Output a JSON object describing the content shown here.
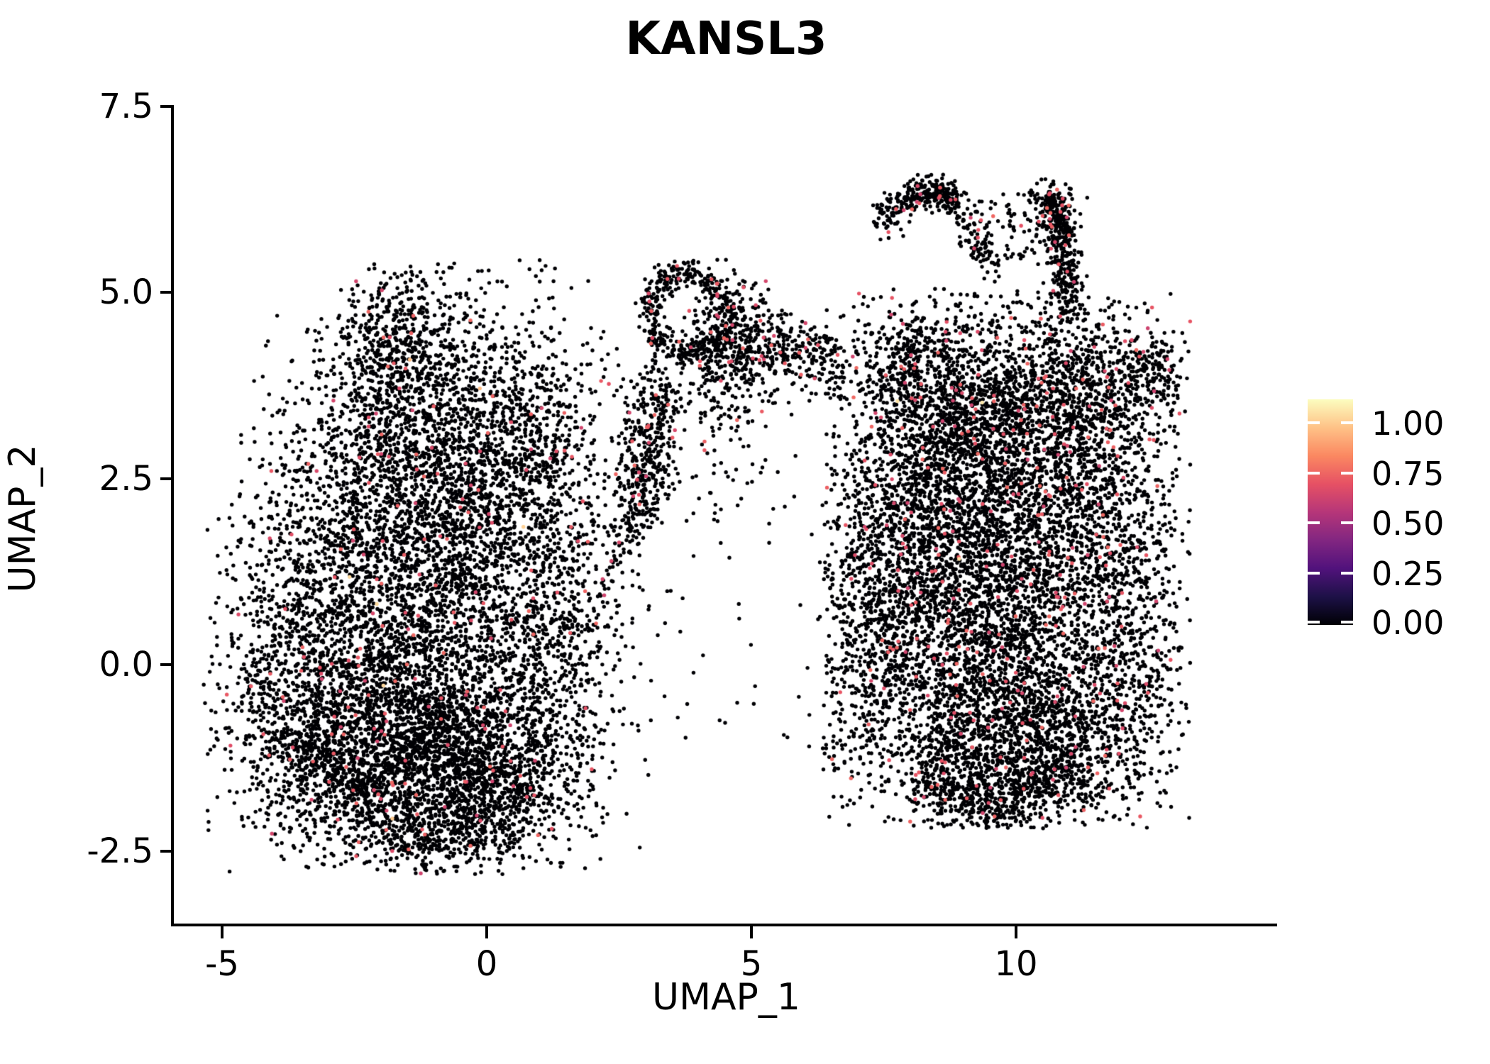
{
  "title": "KANSL3",
  "axes": {
    "x": {
      "label": "UMAP_1",
      "ticks": [
        -5,
        0,
        5,
        10
      ],
      "tick_labels": [
        "-5",
        "0",
        "5",
        "10"
      ]
    },
    "y": {
      "label": "UMAP_2",
      "ticks": [
        7.5,
        5.0,
        2.5,
        0.0,
        -2.5
      ],
      "tick_labels": [
        "7.5",
        "5.0",
        "2.5",
        "0.0",
        "-2.5"
      ]
    }
  },
  "colorbar": {
    "tick_labels": [
      "1.00",
      "0.75",
      "0.50",
      "0.25",
      "0.00"
    ],
    "gradient_stops": [
      "#000004",
      "#1D1147",
      "#51127C",
      "#822681",
      "#B63679",
      "#E65164",
      "#FB8861",
      "#FEC287",
      "#FCFDBF"
    ]
  },
  "chart_data": {
    "type": "scatter",
    "title": "KANSL3",
    "xlabel": "UMAP_1",
    "ylabel": "UMAP_2",
    "xlim": [
      -6.6,
      14.9
    ],
    "ylim": [
      -3.5,
      7.6
    ],
    "x_ticks": [
      -5,
      0,
      5,
      10
    ],
    "y_ticks": [
      7.5,
      5.0,
      2.5,
      0.0,
      -2.5
    ],
    "legend_position": "right",
    "grid": false,
    "background_color": "#FFFFFF",
    "point_radius_px": 2.7,
    "zero_expression_color": "#000004",
    "low_expression_color": "#E65164",
    "colorbar_range": [
      0.0,
      1.0
    ],
    "expression_note": "vast majority of cells have value 0 (black); sparse cells ~0.5-0.7 (pink); very rare cells ~0.9 (pale yellow)",
    "value_model": {
      "high_rate": 0.0008,
      "high_value_range": [
        0.86,
        0.97
      ],
      "low_value_range": [
        0.56,
        0.68
      ]
    },
    "clusters": [
      {
        "kind": "gauss",
        "cx": -1.5,
        "cy": 4.35,
        "sx": 0.75,
        "sy": 0.55,
        "n": 600,
        "pink": 0.02,
        "clip": [
          -5.35,
          -2.82,
          3.25,
          5.4
        ]
      },
      {
        "kind": "gauss",
        "cx": -1.2,
        "cy": 3.0,
        "sx": 1.25,
        "sy": 0.75,
        "n": 1000,
        "pink": 0.02,
        "clip": [
          -5.35,
          -2.82,
          3.25,
          5.4
        ]
      },
      {
        "kind": "gauss",
        "cx": -2.3,
        "cy": 1.3,
        "sx": 1.2,
        "sy": 1.2,
        "n": 1500,
        "pink": 0.02,
        "clip": [
          -5.35,
          -2.82,
          3.25,
          5.4
        ]
      },
      {
        "kind": "gauss",
        "cx": -0.5,
        "cy": 1.4,
        "sx": 1.1,
        "sy": 1.1,
        "n": 1300,
        "pink": 0.02,
        "clip": [
          -5.35,
          -2.82,
          3.25,
          5.4
        ]
      },
      {
        "kind": "gauss",
        "cx": -2.1,
        "cy": -0.9,
        "sx": 1.25,
        "sy": 0.85,
        "n": 2200,
        "pink": 0.018,
        "clip": [
          -5.35,
          -2.82,
          3.25,
          5.4
        ]
      },
      {
        "kind": "gauss",
        "cx": -0.3,
        "cy": -1.4,
        "sx": 1.0,
        "sy": 0.65,
        "n": 1500,
        "pink": 0.018,
        "clip": [
          -5.35,
          -2.82,
          3.25,
          5.4
        ]
      },
      {
        "kind": "gauss",
        "cx": 1.2,
        "cy": 0.5,
        "sx": 0.7,
        "sy": 1.2,
        "n": 800,
        "pink": 0.02,
        "clip": [
          -5.35,
          -2.82,
          3.25,
          5.4
        ]
      },
      {
        "kind": "gauss",
        "cx": 0.8,
        "cy": 3.2,
        "sx": 0.8,
        "sy": 0.75,
        "n": 500,
        "pink": 0.025,
        "clip": [
          -5.35,
          -2.82,
          3.25,
          5.4
        ]
      },
      {
        "kind": "gauss",
        "cx": -3.9,
        "cy": -0.2,
        "sx": 0.6,
        "sy": 1.0,
        "n": 350,
        "pink": 0.02,
        "clip": [
          -5.35,
          -2.82,
          3.25,
          5.4
        ]
      },
      {
        "kind": "line",
        "x1": 2.55,
        "y1": 1.5,
        "x2": 3.05,
        "y2": 3.85,
        "sd": 0.2,
        "n": 200,
        "pink": 0.03,
        "clip": [
          -5.35,
          -2.82,
          3.45,
          5.4
        ]
      },
      {
        "kind": "line",
        "x1": -3.4,
        "y1": -1.0,
        "x2": -1.6,
        "y2": -2.35,
        "sd": 0.22,
        "n": 260,
        "pink": 0.018,
        "clip": [
          -5.35,
          -2.82,
          3.25,
          5.4
        ]
      },
      {
        "kind": "line",
        "x1": -1.6,
        "y1": -2.45,
        "x2": 0.7,
        "y2": -2.0,
        "sd": 0.22,
        "n": 260,
        "pink": 0.018,
        "clip": [
          -5.35,
          -2.82,
          3.25,
          5.4
        ]
      },
      {
        "kind": "ring",
        "cx": 3.82,
        "cy": 4.72,
        "rx": 0.72,
        "ry": 0.55,
        "sd": 0.17,
        "n": 420,
        "pink": 0.05,
        "clip": [
          2.5,
          1.5,
          6.95,
          5.5
        ]
      },
      {
        "kind": "gauss",
        "cx": 4.6,
        "cy": 4.25,
        "sx": 0.45,
        "sy": 0.5,
        "n": 420,
        "pink": 0.05,
        "clip": [
          2.5,
          1.5,
          6.95,
          5.5
        ]
      },
      {
        "kind": "line",
        "x1": 5.05,
        "y1": 4.4,
        "x2": 6.6,
        "y2": 4.05,
        "sd": 0.22,
        "n": 200,
        "pink": 0.05,
        "clip": [
          2.5,
          1.5,
          6.95,
          5.5
        ]
      },
      {
        "kind": "line",
        "x1": 3.35,
        "y1": 3.75,
        "x2": 2.95,
        "y2": 1.85,
        "sd": 0.18,
        "n": 240,
        "pink": 0.04,
        "clip": [
          2.5,
          1.5,
          6.95,
          5.5
        ]
      },
      {
        "kind": "gauss",
        "cx": 4.3,
        "cy": 3.1,
        "sx": 0.6,
        "sy": 0.7,
        "n": 80,
        "pink": 0.04,
        "clip": [
          2.5,
          1.5,
          6.95,
          5.5
        ]
      },
      {
        "kind": "line",
        "x1": 7.45,
        "y1": 5.95,
        "x2": 8.1,
        "y2": 6.3,
        "sd": 0.12,
        "n": 110,
        "pink": 0.06,
        "clip": [
          7.2,
          4.55,
          11.45,
          6.6
        ]
      },
      {
        "kind": "line",
        "x1": 8.1,
        "y1": 6.33,
        "x2": 8.9,
        "y2": 6.28,
        "sd": 0.11,
        "n": 190,
        "pink": 0.06,
        "clip": [
          7.2,
          4.55,
          11.45,
          6.6
        ]
      },
      {
        "kind": "line",
        "x1": 8.85,
        "y1": 6.15,
        "x2": 9.55,
        "y2": 5.35,
        "sd": 0.13,
        "n": 100,
        "pink": 0.05,
        "clip": [
          7.2,
          4.55,
          11.45,
          6.6
        ]
      },
      {
        "kind": "box",
        "x1": 9.2,
        "y1": 5.45,
        "x2": 10.55,
        "y2": 6.35,
        "n": 70,
        "pink": 0.04
      },
      {
        "kind": "line",
        "x1": 10.75,
        "y1": 6.3,
        "x2": 11.05,
        "y2": 4.75,
        "sd": 0.16,
        "n": 360,
        "pink": 0.06,
        "clip": [
          7.2,
          4.55,
          11.45,
          6.6
        ]
      },
      {
        "kind": "gauss",
        "cx": 10.7,
        "cy": 6.2,
        "sx": 0.22,
        "sy": 0.15,
        "n": 90,
        "pink": 0.06,
        "clip": [
          7.2,
          4.55,
          11.45,
          6.6
        ]
      },
      {
        "kind": "gauss",
        "cx": 9.4,
        "cy": 3.5,
        "sx": 1.15,
        "sy": 0.7,
        "n": 1500,
        "pink": 0.04,
        "clip": [
          6.35,
          -2.2,
          13.3,
          5.05
        ]
      },
      {
        "kind": "gauss",
        "cx": 8.6,
        "cy": 1.8,
        "sx": 1.0,
        "sy": 1.1,
        "n": 1500,
        "pink": 0.035,
        "clip": [
          6.35,
          -2.2,
          13.3,
          5.05
        ]
      },
      {
        "kind": "gauss",
        "cx": 10.6,
        "cy": 2.0,
        "sx": 1.1,
        "sy": 1.0,
        "n": 1500,
        "pink": 0.035,
        "clip": [
          6.35,
          -2.2,
          13.3,
          5.05
        ]
      },
      {
        "kind": "gauss",
        "cx": 9.3,
        "cy": 0.1,
        "sx": 1.2,
        "sy": 1.0,
        "n": 1800,
        "pink": 0.03,
        "clip": [
          6.35,
          -2.2,
          13.3,
          5.05
        ]
      },
      {
        "kind": "gauss",
        "cx": 10.2,
        "cy": -1.1,
        "sx": 1.1,
        "sy": 0.55,
        "n": 1100,
        "pink": 0.03,
        "clip": [
          6.35,
          -2.2,
          13.3,
          5.05
        ]
      },
      {
        "kind": "gauss",
        "cx": 7.35,
        "cy": 0.7,
        "sx": 0.5,
        "sy": 1.3,
        "n": 600,
        "pink": 0.03,
        "clip": [
          6.35,
          -2.2,
          13.3,
          5.05
        ]
      },
      {
        "kind": "gauss",
        "cx": 12.0,
        "cy": 0.6,
        "sx": 0.65,
        "sy": 1.3,
        "n": 800,
        "pink": 0.035,
        "clip": [
          6.35,
          -2.2,
          13.3,
          5.05
        ]
      },
      {
        "kind": "gauss",
        "cx": 11.5,
        "cy": 3.7,
        "sx": 0.7,
        "sy": 0.55,
        "n": 500,
        "pink": 0.04,
        "clip": [
          6.35,
          -2.2,
          13.3,
          5.05
        ]
      },
      {
        "kind": "gauss",
        "cx": 12.55,
        "cy": 3.95,
        "sx": 0.3,
        "sy": 0.35,
        "n": 160,
        "pink": 0.04,
        "clip": [
          6.35,
          -2.2,
          13.3,
          5.05
        ]
      },
      {
        "kind": "gauss",
        "cx": 7.85,
        "cy": 4.05,
        "sx": 0.45,
        "sy": 0.4,
        "n": 240,
        "pink": 0.04,
        "clip": [
          6.35,
          -2.2,
          13.3,
          5.05
        ]
      },
      {
        "kind": "line",
        "x1": 8.2,
        "y1": -1.5,
        "x2": 9.6,
        "y2": -1.95,
        "sd": 0.22,
        "n": 240,
        "pink": 0.03,
        "clip": [
          6.35,
          -2.2,
          13.3,
          5.05
        ]
      },
      {
        "kind": "line",
        "x1": 9.6,
        "y1": -1.95,
        "x2": 11.3,
        "y2": -1.35,
        "sd": 0.22,
        "n": 240,
        "pink": 0.03,
        "clip": [
          6.35,
          -2.2,
          13.3,
          5.05
        ]
      },
      {
        "kind": "box",
        "x1": 2.1,
        "y1": -1.2,
        "x2": 7.1,
        "y2": 3.5,
        "n": 80,
        "pink": 0.03
      },
      {
        "kind": "box",
        "x1": 5.3,
        "y1": 3.55,
        "x2": 6.8,
        "y2": 4.5,
        "n": 40,
        "pink": 0.04
      },
      {
        "kind": "box",
        "x1": -2.5,
        "y1": 5.05,
        "x2": 1.3,
        "y2": 5.45,
        "n": 14,
        "pink": 0.0
      },
      {
        "kind": "box",
        "x1": 6.3,
        "y1": -1.6,
        "x2": 7.4,
        "y2": 0.5,
        "n": 30,
        "pink": 0.03
      }
    ]
  }
}
